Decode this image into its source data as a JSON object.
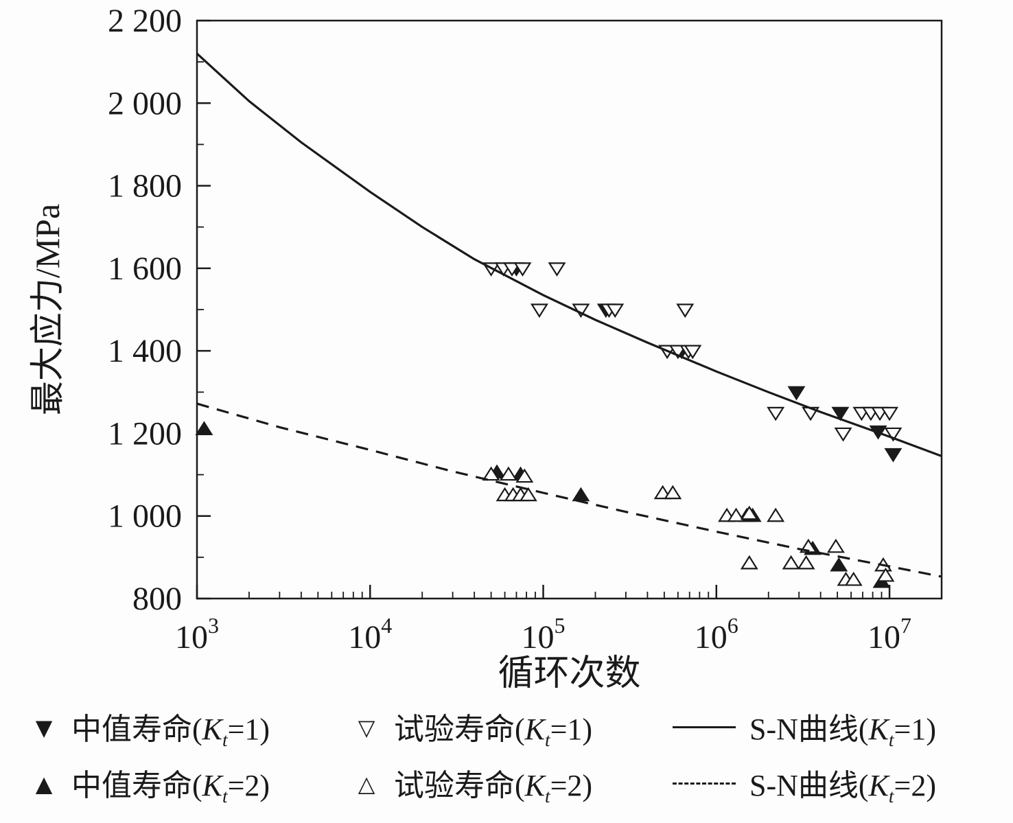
{
  "figure": {
    "background": "#fdfdfd",
    "axis_color": "#1a1a1a"
  },
  "chart_data": {
    "type": "scatter",
    "title": "",
    "xlabel": "循环次数",
    "ylabel": "最大应力/MPa",
    "x_scale": "log",
    "xlim": [
      1000,
      20000000
    ],
    "ylim": [
      800,
      2200
    ],
    "x_tick_exponents": [
      3,
      4,
      5,
      6,
      7
    ],
    "y_ticks": [
      800,
      1000,
      1200,
      1400,
      1600,
      1800,
      2000,
      2200
    ],
    "y_tick_labels": [
      "800",
      "1 000",
      "1 200",
      "1 400",
      "1 600",
      "1 800",
      "2 000",
      "2 200"
    ],
    "grid": false,
    "legend_position": "bottom",
    "series": [
      {
        "id": "median-life-kt1",
        "name": "中值寿命(Kt=1)",
        "type": "scatter",
        "marker": "triangle-down-filled",
        "points": [
          [
            70000,
            1600
          ],
          [
            230000,
            1500
          ],
          [
            630000,
            1400
          ],
          [
            2900000,
            1300
          ],
          [
            5200000,
            1250
          ],
          [
            8600000,
            1205
          ],
          [
            10500000,
            1150
          ]
        ]
      },
      {
        "id": "test-life-kt1",
        "name": "试验寿命(Kt=1)",
        "type": "scatter",
        "marker": "triangle-down-open",
        "points": [
          [
            50000,
            1600
          ],
          [
            59000,
            1600
          ],
          [
            66000,
            1600
          ],
          [
            76000,
            1600
          ],
          [
            120000,
            1600
          ],
          [
            95000,
            1500
          ],
          [
            165000,
            1500
          ],
          [
            240000,
            1500
          ],
          [
            260000,
            1500
          ],
          [
            660000,
            1500
          ],
          [
            520000,
            1400
          ],
          [
            600000,
            1400
          ],
          [
            690000,
            1400
          ],
          [
            730000,
            1400
          ],
          [
            2200000,
            1250
          ],
          [
            3500000,
            1250
          ],
          [
            6900000,
            1250
          ],
          [
            7800000,
            1250
          ],
          [
            8800000,
            1250
          ],
          [
            10000000,
            1250
          ],
          [
            5400000,
            1200
          ],
          [
            10500000,
            1200
          ]
        ]
      },
      {
        "id": "median-life-kt2",
        "name": "中值寿命(Kt=2)",
        "type": "scatter",
        "marker": "triangle-up-filled",
        "points": [
          [
            1100,
            1210
          ],
          [
            54000,
            1105
          ],
          [
            74000,
            1100
          ],
          [
            165000,
            1050
          ],
          [
            1500000,
            1000
          ],
          [
            1620000,
            1000
          ],
          [
            3600000,
            920
          ],
          [
            5100000,
            880
          ],
          [
            9000000,
            840
          ]
        ]
      },
      {
        "id": "test-life-kt2",
        "name": "试验寿命(Kt=2)",
        "type": "scatter",
        "marker": "triangle-up-open",
        "points": [
          [
            50000,
            1100
          ],
          [
            63000,
            1100
          ],
          [
            78000,
            1095
          ],
          [
            60000,
            1050
          ],
          [
            67000,
            1050
          ],
          [
            74000,
            1050
          ],
          [
            82000,
            1050
          ],
          [
            490000,
            1055
          ],
          [
            560000,
            1055
          ],
          [
            1150000,
            1000
          ],
          [
            1300000,
            1000
          ],
          [
            1550000,
            1005
          ],
          [
            2200000,
            1000
          ],
          [
            1550000,
            885
          ],
          [
            2700000,
            885
          ],
          [
            3300000,
            885
          ],
          [
            3400000,
            925
          ],
          [
            4900000,
            925
          ],
          [
            5600000,
            845
          ],
          [
            6200000,
            845
          ],
          [
            9200000,
            880
          ],
          [
            9500000,
            855
          ]
        ]
      },
      {
        "id": "sn-curve-kt1",
        "name": "S-N曲线(Kt=1)",
        "type": "line",
        "style": "solid",
        "points": [
          [
            1000,
            2120
          ],
          [
            2000,
            2005
          ],
          [
            4000,
            1905
          ],
          [
            10000,
            1785
          ],
          [
            20000,
            1700
          ],
          [
            40000,
            1622
          ],
          [
            100000,
            1535
          ],
          [
            200000,
            1475
          ],
          [
            400000,
            1420
          ],
          [
            1000000,
            1350
          ],
          [
            2000000,
            1300
          ],
          [
            4000000,
            1252
          ],
          [
            10000000,
            1192
          ],
          [
            20000000,
            1145
          ]
        ]
      },
      {
        "id": "sn-curve-kt2",
        "name": "S-N曲线(Kt=2)",
        "type": "line",
        "style": "dashed",
        "points": [
          [
            1000,
            1272
          ],
          [
            3000,
            1215
          ],
          [
            10000,
            1160
          ],
          [
            30000,
            1108
          ],
          [
            100000,
            1056
          ],
          [
            300000,
            1010
          ],
          [
            1000000,
            962
          ],
          [
            3000000,
            920
          ],
          [
            10000000,
            878
          ],
          [
            20000000,
            853
          ]
        ]
      }
    ]
  },
  "legend": {
    "items": [
      {
        "type": "marker",
        "marker": "▼",
        "pre": "中值寿命(",
        "k": "K",
        "sub": "t",
        "post": "=1)"
      },
      {
        "type": "marker",
        "marker": "▽",
        "pre": "试验寿命(",
        "k": "K",
        "sub": "t",
        "post": "=1)"
      },
      {
        "type": "line",
        "style": "solid",
        "pre": "S-N曲线(",
        "k": "K",
        "sub": "t",
        "post": "=1)"
      },
      {
        "type": "marker",
        "marker": "▲",
        "pre": "中值寿命(",
        "k": "K",
        "sub": "t",
        "post": "=2)"
      },
      {
        "type": "marker",
        "marker": "△",
        "pre": "试验寿命(",
        "k": "K",
        "sub": "t",
        "post": "=2)"
      },
      {
        "type": "line",
        "style": "dashed",
        "pre": "S-N曲线(",
        "k": "K",
        "sub": "t",
        "post": "=2)"
      }
    ]
  }
}
